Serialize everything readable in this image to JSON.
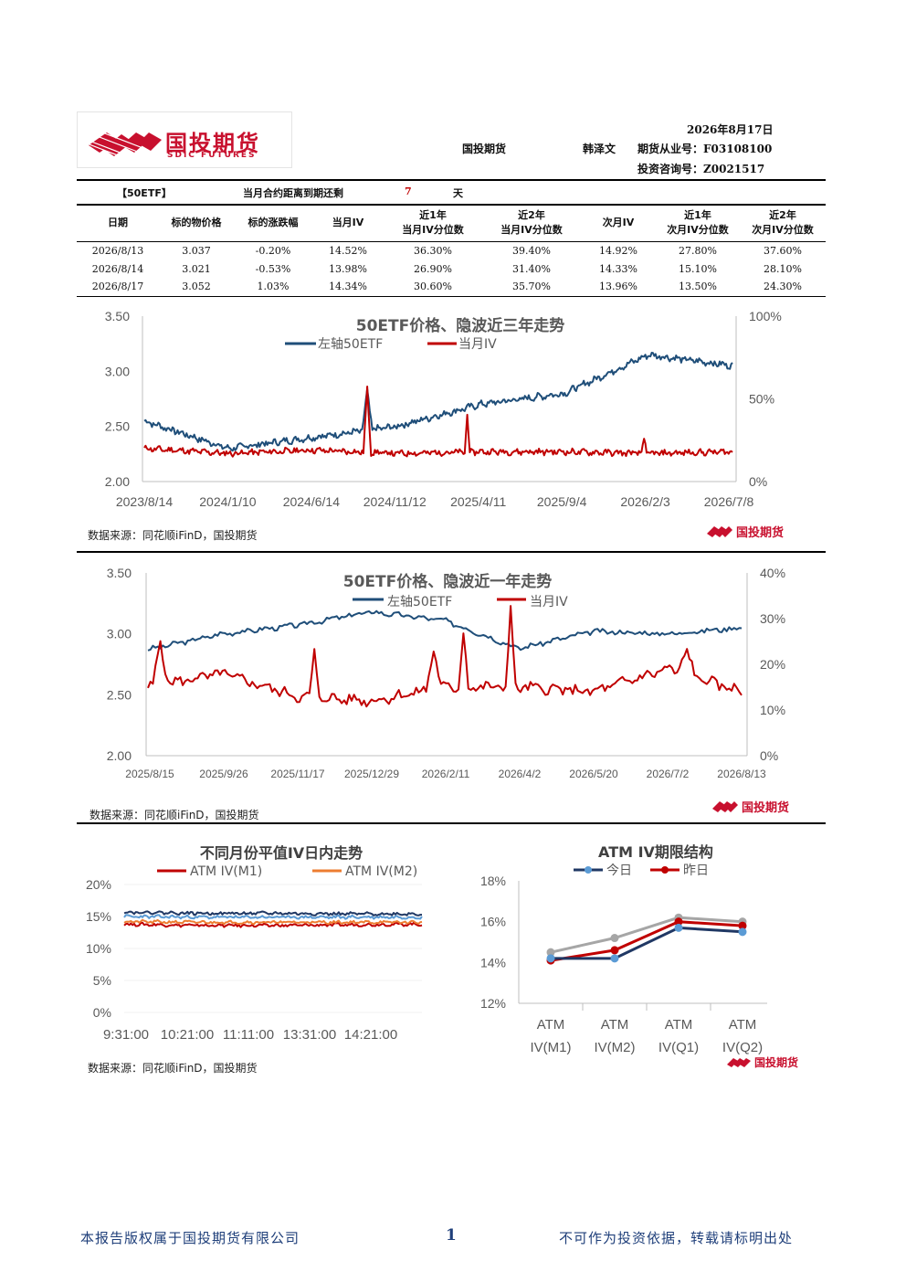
{
  "header": {
    "logo_name": "国投期货",
    "logo_sub": "SDIC FUTURES",
    "date": "2026年8月17日",
    "company": "国投期货",
    "analyst": "韩泽文",
    "license_label": "期货从业号：F03108100",
    "consult_label": "投资咨询号：Z0021517"
  },
  "summary": {
    "tag": "【50ETF】",
    "expiry_text": "当月合约距离到期还剩",
    "days": "7",
    "unit": "天"
  },
  "table": {
    "headers": [
      [
        "日期"
      ],
      [
        "标的物价格"
      ],
      [
        "标的涨跌幅"
      ],
      [
        "当月IV"
      ],
      [
        "近1年",
        "当月IV分位数"
      ],
      [
        "近2年",
        "当月IV分位数"
      ],
      [
        "次月IV"
      ],
      [
        "近1年",
        "次月IV分位数"
      ],
      [
        "近2年",
        "次月IV分位数"
      ]
    ],
    "rows": [
      [
        "2026/8/13",
        "3.037",
        "-0.20%",
        "14.52%",
        "36.30%",
        "39.40%",
        "14.92%",
        "27.80%",
        "37.60%"
      ],
      [
        "2026/8/14",
        "3.021",
        "-0.53%",
        "13.98%",
        "26.90%",
        "31.40%",
        "14.33%",
        "15.10%",
        "28.10%"
      ],
      [
        "2026/8/17",
        "3.052",
        "1.03%",
        "14.34%",
        "30.60%",
        "35.70%",
        "13.96%",
        "13.50%",
        "24.30%"
      ]
    ]
  },
  "source_text": "数据来源：同花顺iFinD，国投期货",
  "logo_small": "国投期货",
  "charts": {
    "c1": {
      "title": "50ETF价格、隐波近三年走势",
      "legend": [
        "左轴50ETF",
        "当月IV"
      ],
      "yleft": [
        "3.50",
        "3.00",
        "2.50",
        "2.00"
      ],
      "yright": [
        "100%",
        "50%",
        "0%"
      ],
      "xticks": [
        "2023/8/14",
        "2024/1/10",
        "2024/6/14",
        "2024/11/12",
        "2025/4/11",
        "2025/9/4",
        "2026/2/3",
        "2026/7/8"
      ]
    },
    "c2": {
      "title": "50ETF价格、隐波近一年走势",
      "legend": [
        "左轴50ETF",
        "当月IV"
      ],
      "yleft": [
        "3.50",
        "3.00",
        "2.50",
        "2.00"
      ],
      "yright": [
        "40%",
        "30%",
        "20%",
        "10%",
        "0%"
      ],
      "xticks": [
        "2025/8/15",
        "2025/9/26",
        "2025/11/17",
        "2025/12/29",
        "2026/2/11",
        "2026/4/2",
        "2026/5/20",
        "2026/7/2",
        "2026/8/13"
      ]
    },
    "c3": {
      "title": "不同月份平值IV日内走势",
      "legend": [
        "ATM IV(M1)",
        "ATM IV(M2)"
      ],
      "yticks": [
        "20%",
        "15%",
        "10%",
        "5%",
        "0%"
      ],
      "xticks": [
        "9:31:00",
        "10:21:00",
        "11:11:00",
        "13:31:00",
        "14:21:00"
      ]
    },
    "c4": {
      "title": "ATM IV期限结构",
      "legend": [
        "今日",
        "昨日"
      ],
      "yticks": [
        "18%",
        "16%",
        "14%",
        "12%"
      ],
      "xticks": [
        [
          "ATM",
          "IV(M1)"
        ],
        [
          "ATM",
          "IV(M2)"
        ],
        [
          "ATM",
          "IV(Q1)"
        ],
        [
          "ATM",
          "IV(Q2)"
        ]
      ]
    }
  },
  "colors": {
    "blue": "#1f4e79",
    "red": "#c00000",
    "orange": "#ed7d31",
    "navy": "#203864",
    "gray": "#a6a6a6",
    "light_blue": "#5b9bd5"
  },
  "chart_data": [
    {
      "type": "line",
      "title": "50ETF价格、隐波近三年走势",
      "x": [
        "2023/8/14",
        "2024/1/10",
        "2024/6/14",
        "2024/11/12",
        "2025/4/11",
        "2025/9/4",
        "2026/2/3",
        "2026/7/8"
      ],
      "series": [
        {
          "name": "左轴50ETF",
          "axis": "left",
          "values": [
            2.55,
            2.3,
            2.4,
            2.5,
            2.7,
            2.8,
            3.15,
            3.05
          ]
        },
        {
          "name": "当月IV",
          "axis": "right",
          "values": [
            0.2,
            0.17,
            0.19,
            0.17,
            0.18,
            0.18,
            0.17,
            0.18
          ]
        }
      ],
      "ylim_left": [
        2.0,
        3.5
      ],
      "ylim_right": [
        0,
        1.0
      ]
    },
    {
      "type": "line",
      "title": "50ETF价格、隐波近一年走势",
      "x": [
        "2025/8/15",
        "2025/9/26",
        "2025/11/17",
        "2025/12/29",
        "2026/2/11",
        "2026/4/2",
        "2026/5/20",
        "2026/7/2",
        "2026/8/13"
      ],
      "series": [
        {
          "name": "左轴50ETF",
          "axis": "left",
          "values": [
            2.87,
            3.0,
            3.07,
            3.18,
            3.11,
            2.88,
            3.02,
            3.0,
            3.05
          ]
        },
        {
          "name": "当月IV",
          "axis": "right",
          "values": [
            0.15,
            0.18,
            0.13,
            0.12,
            0.15,
            0.15,
            0.14,
            0.19,
            0.14
          ]
        }
      ],
      "ylim_left": [
        2.0,
        3.5
      ],
      "ylim_right": [
        0,
        0.4
      ]
    },
    {
      "type": "line",
      "title": "不同月份平值IV日内走势",
      "x": [
        "9:31:00",
        "10:21:00",
        "11:11:00",
        "13:31:00",
        "14:21:00"
      ],
      "series": [
        {
          "name": "ATM IV(M1)",
          "values": [
            0.138,
            0.136,
            0.136,
            0.137,
            0.138
          ]
        },
        {
          "name": "ATM IV(M2)",
          "values": [
            0.142,
            0.141,
            0.141,
            0.141,
            0.141
          ]
        },
        {
          "values": [
            0.157,
            0.155,
            0.155,
            0.154,
            0.154
          ]
        },
        {
          "values": [
            0.15,
            0.149,
            0.149,
            0.149,
            0.149
          ]
        }
      ],
      "ylim": [
        0,
        0.2
      ]
    },
    {
      "type": "line",
      "title": "ATM IV期限结构",
      "categories": [
        "ATM IV(M1)",
        "ATM IV(M2)",
        "ATM IV(Q1)",
        "ATM IV(Q2)"
      ],
      "series": [
        {
          "name": "今日",
          "values": [
            0.142,
            0.142,
            0.157,
            0.155
          ]
        },
        {
          "name": "昨日",
          "values": [
            0.141,
            0.146,
            0.16,
            0.158
          ]
        },
        {
          "values": [
            0.145,
            0.152,
            0.162,
            0.16
          ]
        }
      ],
      "ylim": [
        0.12,
        0.18
      ]
    }
  ],
  "footer": {
    "left": "本报告版权属于国投期货有限公司",
    "page": "1",
    "right": "不可作为投资依据，转载请标明出处"
  }
}
